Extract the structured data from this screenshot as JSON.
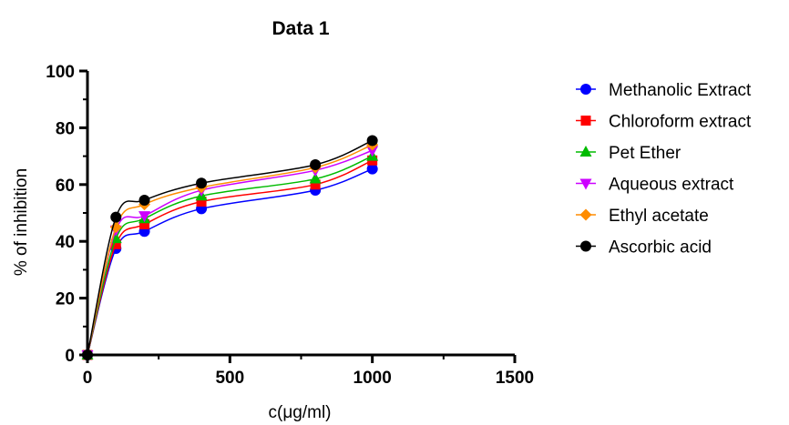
{
  "chart_data": {
    "type": "line",
    "title": "Data 1",
    "xlabel": "c(μg/ml)",
    "ylabel": "% of inhibition",
    "xlim": [
      0,
      1500
    ],
    "ylim": [
      0,
      100
    ],
    "xticks": [
      0,
      500,
      1000,
      1500
    ],
    "yticks": [
      0,
      20,
      40,
      60,
      80,
      100
    ],
    "grid": false,
    "legend_position": "right",
    "x": [
      0,
      100,
      200,
      400,
      800,
      1000
    ],
    "series": [
      {
        "name": "Methanolic Extract",
        "color": "#0000ff",
        "marker": "circle",
        "values": [
          0,
          37.5,
          43.5,
          51.5,
          58,
          65.5
        ]
      },
      {
        "name": "Chloroform extract",
        "color": "#ff0000",
        "marker": "square",
        "values": [
          0,
          39,
          46,
          54,
          60,
          68.5
        ]
      },
      {
        "name": "Pet Ether",
        "color": "#00bb00",
        "marker": "triangle-up",
        "values": [
          0,
          41,
          48,
          56,
          62,
          70
        ]
      },
      {
        "name": "Aqueous extract",
        "color": "#cc00ff",
        "marker": "triangle-down",
        "values": [
          0,
          44,
          49,
          58,
          65,
          72
        ]
      },
      {
        "name": "Ethyl acetate",
        "color": "#ff8c00",
        "marker": "diamond",
        "values": [
          0,
          45,
          53,
          59,
          66,
          74
        ]
      },
      {
        "name": "Ascorbic acid",
        "color": "#000000",
        "marker": "circle",
        "values": [
          0,
          48.5,
          54.5,
          60.5,
          67,
          75.5
        ]
      }
    ]
  }
}
